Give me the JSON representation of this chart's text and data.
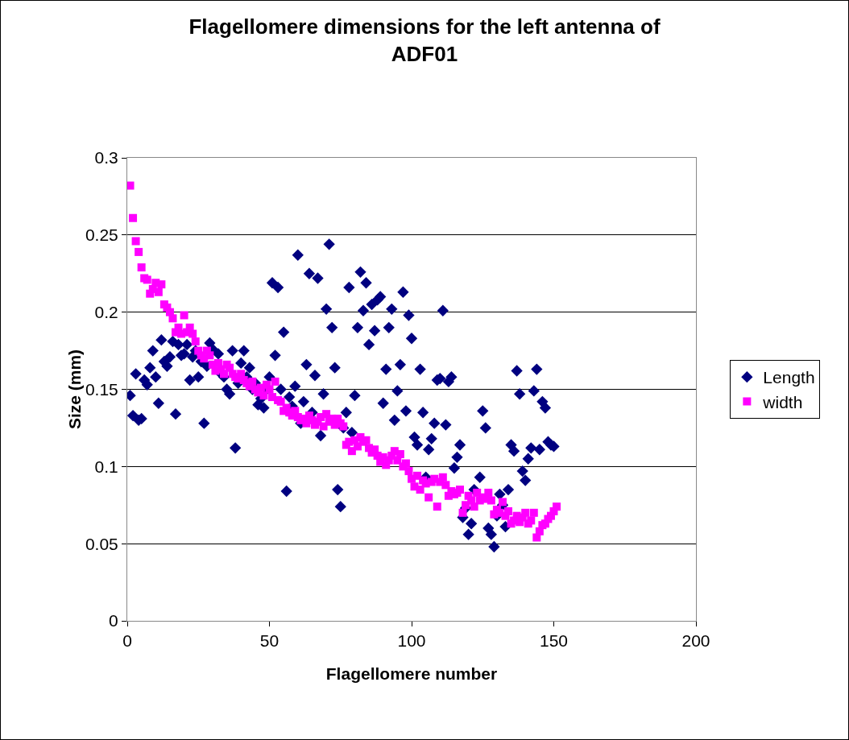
{
  "chart_data": {
    "type": "scatter",
    "title": "Flagellomere dimensions for the left antenna of ADF01",
    "xlabel": "Flagellomere number",
    "ylabel": "Size (mm)",
    "xlim": [
      0,
      200
    ],
    "xticks": [
      0,
      50,
      100,
      150,
      200
    ],
    "ylim": [
      0,
      0.3
    ],
    "yticks": [
      0,
      0.05,
      0.1,
      0.15,
      0.2,
      0.25,
      0.3
    ],
    "grid": "y",
    "legend": "right",
    "series": [
      {
        "name": "Length",
        "color": "#000080",
        "marker": "diamond",
        "x": [
          1,
          2,
          3,
          4,
          5,
          6,
          7,
          8,
          9,
          10,
          11,
          12,
          13,
          14,
          15,
          16,
          17,
          18,
          19,
          20,
          21,
          22,
          23,
          24,
          25,
          26,
          27,
          28,
          29,
          30,
          31,
          32,
          33,
          34,
          35,
          36,
          37,
          38,
          39,
          40,
          41,
          42,
          43,
          44,
          45,
          46,
          47,
          48,
          49,
          50,
          51,
          52,
          53,
          54,
          55,
          56,
          57,
          58,
          59,
          60,
          61,
          62,
          63,
          64,
          65,
          66,
          67,
          68,
          69,
          70,
          71,
          72,
          73,
          74,
          75,
          76,
          77,
          78,
          79,
          80,
          81,
          82,
          83,
          84,
          85,
          86,
          87,
          88,
          89,
          90,
          91,
          92,
          93,
          94,
          95,
          96,
          97,
          98,
          99,
          100,
          101,
          102,
          103,
          104,
          105,
          106,
          107,
          108,
          109,
          110,
          111,
          112,
          113,
          114,
          115,
          116,
          117,
          118,
          119,
          120,
          121,
          122,
          123,
          124,
          125,
          126,
          127,
          128,
          129,
          130,
          131,
          132,
          133,
          134,
          135,
          136,
          137,
          138,
          139,
          140,
          141,
          142,
          143,
          144,
          145,
          146,
          147,
          148,
          149,
          150
        ],
        "values": [
          0.146,
          0.133,
          0.16,
          0.13,
          0.131,
          0.156,
          0.153,
          0.164,
          0.175,
          0.158,
          0.141,
          0.182,
          0.168,
          0.165,
          0.171,
          0.181,
          0.134,
          0.179,
          0.172,
          0.173,
          0.179,
          0.156,
          0.171,
          0.175,
          0.158,
          0.168,
          0.128,
          0.165,
          0.18,
          0.176,
          null,
          0.173,
          0.16,
          0.158,
          0.15,
          0.147,
          0.175,
          0.112,
          0.154,
          0.167,
          0.175,
          0.158,
          0.164,
          0.15,
          0.154,
          0.14,
          0.144,
          0.138,
          0.15,
          0.158,
          0.219,
          0.172,
          0.216,
          0.15,
          0.187,
          0.084,
          0.145,
          0.139,
          0.152,
          0.237,
          0.128,
          0.142,
          0.166,
          0.225,
          0.135,
          0.159,
          0.222,
          0.12,
          0.147,
          0.202,
          0.244,
          0.19,
          0.164,
          0.085,
          0.074,
          0.125,
          0.135,
          0.216,
          0.122,
          0.146,
          0.19,
          0.226,
          0.201,
          0.219,
          0.179,
          0.205,
          0.188,
          0.208,
          0.21,
          0.141,
          0.163,
          0.19,
          0.202,
          0.13,
          0.149,
          0.166,
          0.213,
          0.136,
          0.198,
          0.183,
          0.119,
          0.114,
          0.163,
          0.135,
          0.093,
          0.111,
          0.118,
          0.128,
          0.156,
          0.157,
          0.201,
          0.127,
          0.155,
          0.158,
          0.099,
          0.106,
          0.114,
          0.067,
          0.073,
          0.056,
          0.063,
          0.085,
          null,
          0.093,
          0.136,
          0.125,
          0.06,
          0.056,
          0.048,
          0.068,
          0.082,
          0.075,
          0.061,
          0.085,
          0.114,
          0.11,
          0.162,
          0.147,
          0.097,
          0.091,
          0.105,
          0.112,
          0.149,
          0.163,
          0.111,
          0.142,
          0.138,
          0.116,
          0.114,
          0.113
        ]
      },
      {
        "name": "width",
        "color": "#ff00ff",
        "marker": "square",
        "x": [
          1,
          2,
          3,
          4,
          5,
          6,
          7,
          8,
          9,
          10,
          11,
          12,
          13,
          14,
          15,
          16,
          17,
          18,
          19,
          20,
          21,
          22,
          23,
          24,
          25,
          26,
          27,
          28,
          29,
          30,
          31,
          32,
          33,
          34,
          35,
          36,
          37,
          38,
          39,
          40,
          41,
          42,
          43,
          44,
          45,
          46,
          47,
          48,
          49,
          50,
          51,
          52,
          53,
          54,
          55,
          56,
          57,
          58,
          59,
          60,
          61,
          62,
          63,
          64,
          65,
          66,
          67,
          68,
          69,
          70,
          71,
          72,
          73,
          74,
          75,
          76,
          77,
          78,
          79,
          80,
          81,
          82,
          83,
          84,
          85,
          86,
          87,
          88,
          89,
          90,
          91,
          92,
          93,
          94,
          95,
          96,
          97,
          98,
          99,
          100,
          101,
          102,
          103,
          104,
          105,
          106,
          107,
          108,
          109,
          110,
          111,
          112,
          113,
          114,
          115,
          116,
          117,
          118,
          119,
          120,
          121,
          122,
          123,
          124,
          125,
          126,
          127,
          128,
          129,
          130,
          131,
          132,
          133,
          134,
          135,
          136,
          137,
          138,
          139,
          140,
          141,
          142,
          143,
          144,
          145,
          146,
          147,
          148,
          149,
          150,
          151
        ],
        "values": [
          0.282,
          0.261,
          0.246,
          0.239,
          0.229,
          0.222,
          0.221,
          0.212,
          0.215,
          0.219,
          0.213,
          0.218,
          0.205,
          0.203,
          0.2,
          0.196,
          0.187,
          0.19,
          0.186,
          0.198,
          0.187,
          0.19,
          0.186,
          0.181,
          0.175,
          0.172,
          0.17,
          0.175,
          0.172,
          0.166,
          0.162,
          0.167,
          0.163,
          0.16,
          0.166,
          0.164,
          0.16,
          0.158,
          0.157,
          0.16,
          0.156,
          0.154,
          0.152,
          0.155,
          0.15,
          0.148,
          0.151,
          0.146,
          0.153,
          0.15,
          0.145,
          0.155,
          0.143,
          0.142,
          0.136,
          0.138,
          0.135,
          0.133,
          0.136,
          0.132,
          0.13,
          0.131,
          0.128,
          0.133,
          0.13,
          0.127,
          0.129,
          0.132,
          0.126,
          0.134,
          0.129,
          0.131,
          0.127,
          0.131,
          0.128,
          0.126,
          0.114,
          0.116,
          0.11,
          0.117,
          0.113,
          0.119,
          0.116,
          0.117,
          0.112,
          0.109,
          0.111,
          0.107,
          0.103,
          0.106,
          0.101,
          0.104,
          0.107,
          0.11,
          0.104,
          0.108,
          0.1,
          0.102,
          0.097,
          0.092,
          0.087,
          0.094,
          0.085,
          0.091,
          0.089,
          0.08,
          0.09,
          0.092,
          0.074,
          0.09,
          0.093,
          0.088,
          0.081,
          0.084,
          0.082,
          0.083,
          0.085,
          0.07,
          0.075,
          0.081,
          0.078,
          0.074,
          0.083,
          0.078,
          0.08,
          0.079,
          0.083,
          0.078,
          0.069,
          0.072,
          0.07,
          0.077,
          0.068,
          0.071,
          0.063,
          0.065,
          0.068,
          0.064,
          0.067,
          0.07,
          0.063,
          0.065,
          0.07,
          0.054,
          0.058,
          0.062,
          0.063,
          0.066,
          0.068,
          0.071,
          0.074
        ]
      }
    ]
  }
}
